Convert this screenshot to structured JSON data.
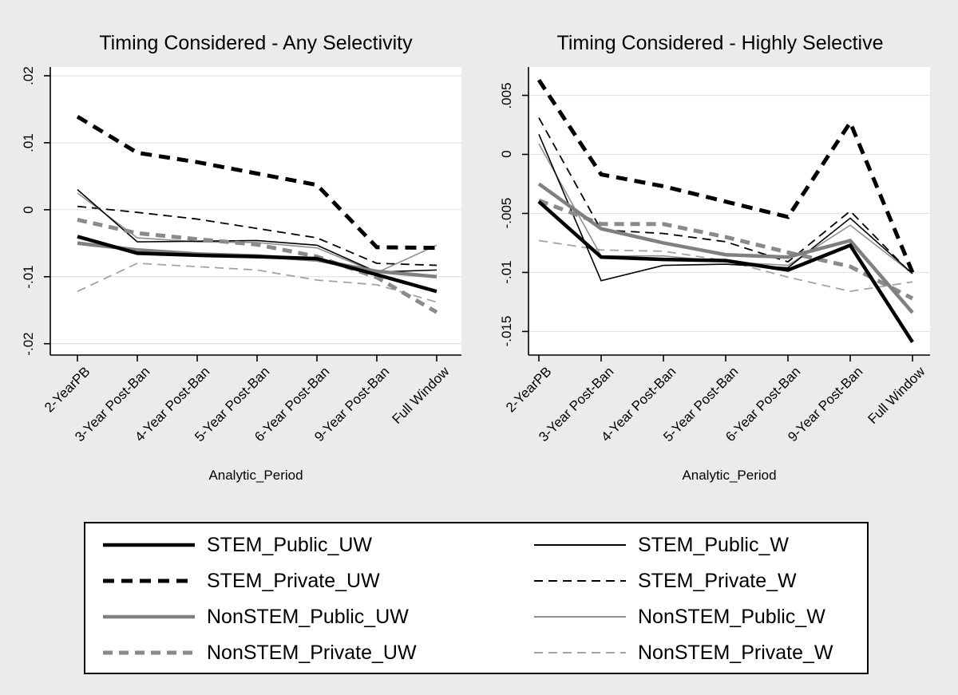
{
  "colors": {
    "background": "#ebebeb",
    "plot_background": "#ffffff",
    "gridline": "#e2e2e2",
    "axis": "#000000"
  },
  "chart_data": [
    {
      "type": "line",
      "title": "Timing Considered - Any Selectivity",
      "xlabel": "Analytic_Period",
      "ylabel": "",
      "grid": true,
      "categories": [
        "2-YearPB",
        "3-Year Post-Ban",
        "4-Year Post-Ban",
        "5-Year Post-Ban",
        "6-Year Post-Ban",
        "9-Year Post-Ban",
        "Full Window"
      ],
      "y_ticks": [
        0.02,
        0.01,
        0,
        -0.01,
        -0.02
      ],
      "y_tick_labels": [
        ".02",
        ".01",
        "0",
        "-.01",
        "-.02"
      ],
      "ylim": [
        -0.0217,
        0.0213
      ],
      "series": [
        {
          "name": "STEM_Public_UW",
          "values": [
            -0.004,
            -0.0065,
            -0.0068,
            -0.007,
            -0.0073,
            -0.0097,
            -0.0122
          ]
        },
        {
          "name": "STEM_Public_W",
          "values": [
            0.003,
            -0.0048,
            -0.0047,
            -0.0046,
            -0.0053,
            -0.0093,
            -0.009
          ]
        },
        {
          "name": "STEM_Private_UW",
          "values": [
            0.0139,
            0.0085,
            0.0071,
            0.0054,
            0.0037,
            -0.0056,
            -0.0057
          ]
        },
        {
          "name": "STEM_Private_W",
          "values": [
            0.0005,
            -0.0004,
            -0.0014,
            -0.0028,
            -0.0042,
            -0.008,
            -0.0083
          ]
        },
        {
          "name": "NonSTEM_Public_UW",
          "values": [
            -0.005,
            -0.006,
            -0.0066,
            -0.0069,
            -0.0075,
            -0.0092,
            -0.01
          ]
        },
        {
          "name": "NonSTEM_Public_W",
          "values": [
            0.0025,
            -0.0042,
            -0.0048,
            -0.0049,
            -0.0057,
            -0.0094,
            -0.0053
          ]
        },
        {
          "name": "NonSTEM_Private_UW",
          "values": [
            -0.0015,
            -0.0035,
            -0.0044,
            -0.0052,
            -0.007,
            -0.0101,
            -0.0153
          ]
        },
        {
          "name": "NonSTEM_Private_W",
          "values": [
            -0.0122,
            -0.008,
            -0.0085,
            -0.009,
            -0.0105,
            -0.0112,
            -0.0138
          ]
        }
      ],
      "legend_position": "bottom-shared"
    },
    {
      "type": "line",
      "title": "Timing Considered - Highly Selective",
      "xlabel": "Analytic_Period",
      "ylabel": "",
      "grid": true,
      "categories": [
        "2-YearPB",
        "3-Year Post-Ban",
        "4-Year Post-Ban",
        "5-Year Post-Ban",
        "6-Year Post-Ban",
        "9-Year Post-Ban",
        "Full Window"
      ],
      "y_ticks": [
        0.005,
        0,
        -0.005,
        -0.01,
        -0.015
      ],
      "y_tick_labels": [
        ".005",
        "0",
        "-.005",
        "-.01",
        "-.015"
      ],
      "ylim": [
        -0.017,
        0.0074
      ],
      "series": [
        {
          "name": "STEM_Public_UW",
          "values": [
            -0.004,
            -0.0087,
            -0.0089,
            -0.009,
            -0.0098,
            -0.0077,
            -0.0159
          ]
        },
        {
          "name": "STEM_Public_W",
          "values": [
            0.0017,
            -0.0107,
            -0.0094,
            -0.0093,
            -0.0096,
            -0.0054,
            -0.0101
          ]
        },
        {
          "name": "STEM_Private_UW",
          "values": [
            0.0063,
            -0.0017,
            -0.0027,
            -0.004,
            -0.0053,
            0.0027,
            -0.01
          ]
        },
        {
          "name": "STEM_Private_W",
          "values": [
            0.0031,
            -0.0064,
            -0.0067,
            -0.0074,
            -0.0091,
            -0.0048,
            -0.0102
          ]
        },
        {
          "name": "NonSTEM_Public_UW",
          "values": [
            -0.0025,
            -0.0063,
            -0.0075,
            -0.0085,
            -0.0087,
            -0.0073,
            -0.0134
          ]
        },
        {
          "name": "NonSTEM_Public_W",
          "values": [
            0.0009,
            -0.0086,
            -0.0086,
            -0.0091,
            -0.0094,
            -0.006,
            -0.0101
          ]
        },
        {
          "name": "NonSTEM_Private_UW",
          "values": [
            -0.0039,
            -0.0059,
            -0.0059,
            -0.007,
            -0.0083,
            -0.0095,
            -0.0122
          ]
        },
        {
          "name": "NonSTEM_Private_W",
          "values": [
            -0.0073,
            -0.0081,
            -0.0082,
            -0.009,
            -0.0104,
            -0.0116,
            -0.0108
          ]
        }
      ],
      "legend_position": "bottom-shared"
    }
  ],
  "series_styles": {
    "STEM_Public_UW": {
      "color": "#000000",
      "width": 4.5,
      "dash": ""
    },
    "STEM_Public_W": {
      "color": "#000000",
      "width": 1.6,
      "dash": ""
    },
    "STEM_Private_UW": {
      "color": "#000000",
      "width": 5,
      "dash": "14 9"
    },
    "STEM_Private_W": {
      "color": "#000000",
      "width": 1.8,
      "dash": "11 7"
    },
    "NonSTEM_Public_UW": {
      "color": "#808080",
      "width": 4.5,
      "dash": ""
    },
    "NonSTEM_Public_W": {
      "color": "#8f8f8f",
      "width": 1.6,
      "dash": ""
    },
    "NonSTEM_Private_UW": {
      "color": "#8a8a8a",
      "width": 5,
      "dash": "12 8"
    },
    "NonSTEM_Private_W": {
      "color": "#a3a3a3",
      "width": 1.8,
      "dash": "11 7"
    }
  },
  "legend": {
    "items": [
      "STEM_Public_UW",
      "STEM_Public_W",
      "STEM_Private_UW",
      "STEM_Private_W",
      "NonSTEM_Public_UW",
      "NonSTEM_Public_W",
      "NonSTEM_Private_UW",
      "NonSTEM_Private_W"
    ]
  }
}
